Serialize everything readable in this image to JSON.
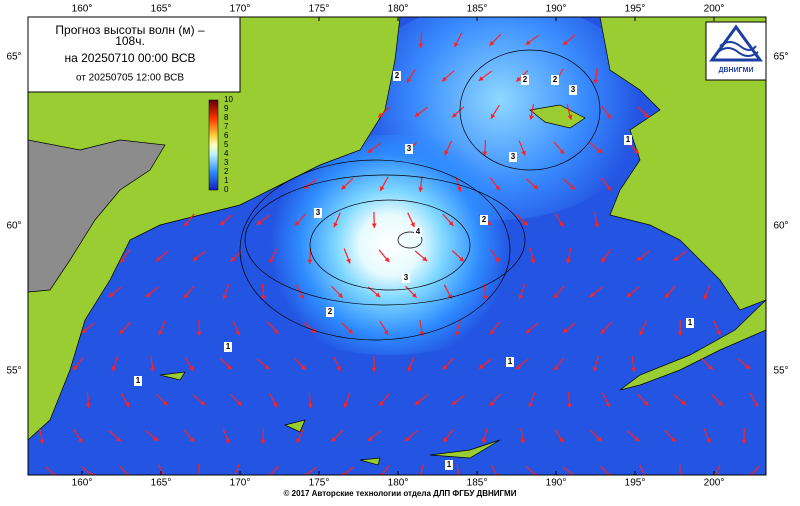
{
  "title": {
    "line1": "Прогноз высоты волн (м) –",
    "line2": "108ч.",
    "line3": "на 20250710 00:00 ВСВ",
    "line4": "от 20250705 12:00 ВСВ"
  },
  "longitude_labels": [
    "160°",
    "165°",
    "170°",
    "175°",
    "180°",
    "185°",
    "190°",
    "195°",
    "200°"
  ],
  "latitude_labels": [
    "65°",
    "60°",
    "55°"
  ],
  "colorbar_ticks": [
    0,
    1,
    2,
    3,
    4,
    5,
    6,
    7,
    8,
    9,
    10
  ],
  "contour_labels": [
    "2",
    "2",
    "3",
    "3",
    "3",
    "3",
    "3",
    "2",
    "2",
    "2",
    "1",
    "1",
    "1",
    "1",
    "1",
    "1",
    "4"
  ],
  "logo": "ДВНИГМИ",
  "footer": "© 2017 Авторские технологии отдела ДЛП ФГБУ ДВНИГМИ"
}
